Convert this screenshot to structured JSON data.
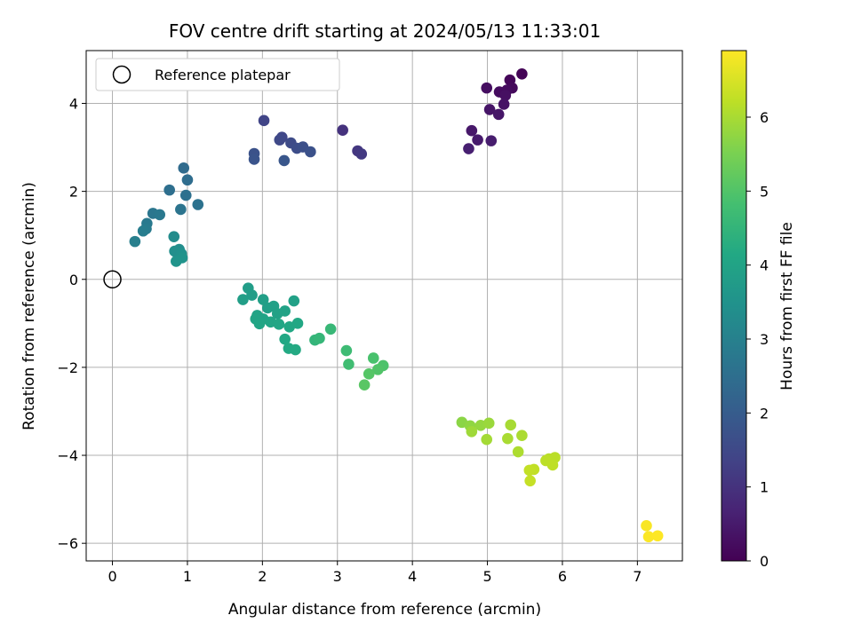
{
  "chart_data": {
    "type": "scatter",
    "title": "FOV centre drift starting at 2024/05/13 11:33:01",
    "xlabel": "Angular distance from reference (arcmin)",
    "ylabel": "Rotation from reference (arcmin)",
    "xlim": [
      -0.35,
      7.6
    ],
    "ylim": [
      -6.4,
      5.2
    ],
    "xticks": [
      0,
      1,
      2,
      3,
      4,
      5,
      6,
      7
    ],
    "yticks": [
      -6,
      -4,
      -2,
      0,
      2,
      4
    ],
    "grid": true,
    "legend": {
      "placement": "top-left",
      "entries": [
        "Reference platepar"
      ]
    },
    "reference_point": {
      "x": 0,
      "y": 0,
      "label": "Reference platepar",
      "marker": "open-circle"
    },
    "colorbar": {
      "label": "Hours from first FF file",
      "colormap": "viridis",
      "range": [
        0,
        6.9
      ],
      "ticks": [
        0,
        1,
        2,
        3,
        4,
        5,
        6
      ]
    },
    "points": [
      {
        "x": 5.46,
        "y": 4.67,
        "h": 0.05
      },
      {
        "x": 5.3,
        "y": 4.53,
        "h": 0.1
      },
      {
        "x": 5.33,
        "y": 4.35,
        "h": 0.15
      },
      {
        "x": 5.26,
        "y": 4.3,
        "h": 0.2
      },
      {
        "x": 5.16,
        "y": 4.26,
        "h": 0.22
      },
      {
        "x": 4.99,
        "y": 4.35,
        "h": 0.25
      },
      {
        "x": 5.24,
        "y": 4.18,
        "h": 0.3
      },
      {
        "x": 5.22,
        "y": 3.98,
        "h": 0.35
      },
      {
        "x": 5.03,
        "y": 3.86,
        "h": 0.4
      },
      {
        "x": 5.15,
        "y": 3.75,
        "h": 0.42
      },
      {
        "x": 4.79,
        "y": 3.38,
        "h": 0.45
      },
      {
        "x": 4.87,
        "y": 3.17,
        "h": 0.5
      },
      {
        "x": 5.05,
        "y": 3.15,
        "h": 0.55
      },
      {
        "x": 4.75,
        "y": 2.97,
        "h": 0.6
      },
      {
        "x": 3.07,
        "y": 3.39,
        "h": 1.0
      },
      {
        "x": 3.27,
        "y": 2.92,
        "h": 1.1
      },
      {
        "x": 3.32,
        "y": 2.85,
        "h": 1.15
      },
      {
        "x": 2.02,
        "y": 3.61,
        "h": 1.4
      },
      {
        "x": 2.26,
        "y": 3.23,
        "h": 1.45
      },
      {
        "x": 2.23,
        "y": 3.17,
        "h": 1.5
      },
      {
        "x": 2.38,
        "y": 3.1,
        "h": 1.55
      },
      {
        "x": 2.46,
        "y": 2.98,
        "h": 1.6
      },
      {
        "x": 2.54,
        "y": 3.01,
        "h": 1.65
      },
      {
        "x": 2.64,
        "y": 2.9,
        "h": 1.7
      },
      {
        "x": 1.89,
        "y": 2.86,
        "h": 1.75
      },
      {
        "x": 1.89,
        "y": 2.73,
        "h": 1.8
      },
      {
        "x": 2.29,
        "y": 2.7,
        "h": 1.85
      },
      {
        "x": 0.95,
        "y": 2.53,
        "h": 2.4
      },
      {
        "x": 1.0,
        "y": 2.26,
        "h": 2.45
      },
      {
        "x": 0.76,
        "y": 2.03,
        "h": 2.5
      },
      {
        "x": 0.98,
        "y": 1.91,
        "h": 2.55
      },
      {
        "x": 1.14,
        "y": 1.7,
        "h": 2.6
      },
      {
        "x": 0.91,
        "y": 1.59,
        "h": 2.65
      },
      {
        "x": 0.54,
        "y": 1.5,
        "h": 2.7
      },
      {
        "x": 0.63,
        "y": 1.47,
        "h": 2.75
      },
      {
        "x": 0.46,
        "y": 1.27,
        "h": 2.8
      },
      {
        "x": 0.45,
        "y": 1.15,
        "h": 2.85
      },
      {
        "x": 0.41,
        "y": 1.1,
        "h": 2.9
      },
      {
        "x": 0.3,
        "y": 0.86,
        "h": 2.95
      },
      {
        "x": 0.82,
        "y": 0.97,
        "h": 3.3
      },
      {
        "x": 0.89,
        "y": 0.68,
        "h": 3.35
      },
      {
        "x": 0.83,
        "y": 0.64,
        "h": 3.4
      },
      {
        "x": 0.92,
        "y": 0.58,
        "h": 3.45
      },
      {
        "x": 0.93,
        "y": 0.49,
        "h": 3.5
      },
      {
        "x": 0.85,
        "y": 0.41,
        "h": 3.55
      },
      {
        "x": 1.81,
        "y": -0.2,
        "h": 3.8
      },
      {
        "x": 1.86,
        "y": -0.36,
        "h": 3.82
      },
      {
        "x": 1.74,
        "y": -0.46,
        "h": 3.84
      },
      {
        "x": 2.01,
        "y": -0.46,
        "h": 3.86
      },
      {
        "x": 2.07,
        "y": -0.65,
        "h": 3.88
      },
      {
        "x": 2.15,
        "y": -0.61,
        "h": 3.9
      },
      {
        "x": 2.42,
        "y": -0.49,
        "h": 3.92
      },
      {
        "x": 2.2,
        "y": -0.78,
        "h": 3.94
      },
      {
        "x": 2.3,
        "y": -0.72,
        "h": 3.96
      },
      {
        "x": 1.93,
        "y": -0.82,
        "h": 3.98
      },
      {
        "x": 2.01,
        "y": -0.9,
        "h": 4.0
      },
      {
        "x": 1.91,
        "y": -0.9,
        "h": 4.02
      },
      {
        "x": 1.96,
        "y": -1.01,
        "h": 4.04
      },
      {
        "x": 2.11,
        "y": -0.97,
        "h": 4.06
      },
      {
        "x": 2.22,
        "y": -1.02,
        "h": 4.08
      },
      {
        "x": 2.36,
        "y": -1.08,
        "h": 4.1
      },
      {
        "x": 2.47,
        "y": -1.0,
        "h": 4.12
      },
      {
        "x": 2.3,
        "y": -1.36,
        "h": 4.14
      },
      {
        "x": 2.35,
        "y": -1.57,
        "h": 4.16
      },
      {
        "x": 2.44,
        "y": -1.6,
        "h": 4.18
      },
      {
        "x": 2.7,
        "y": -1.38,
        "h": 4.5
      },
      {
        "x": 2.76,
        "y": -1.34,
        "h": 4.55
      },
      {
        "x": 2.91,
        "y": -1.13,
        "h": 4.6
      },
      {
        "x": 3.12,
        "y": -1.62,
        "h": 4.7
      },
      {
        "x": 3.15,
        "y": -1.93,
        "h": 4.75
      },
      {
        "x": 3.48,
        "y": -1.79,
        "h": 4.9
      },
      {
        "x": 3.61,
        "y": -1.96,
        "h": 4.95
      },
      {
        "x": 3.54,
        "y": -2.05,
        "h": 5.0
      },
      {
        "x": 3.42,
        "y": -2.15,
        "h": 5.05
      },
      {
        "x": 3.36,
        "y": -2.4,
        "h": 5.1
      },
      {
        "x": 4.66,
        "y": -3.25,
        "h": 5.7
      },
      {
        "x": 4.77,
        "y": -3.33,
        "h": 5.75
      },
      {
        "x": 4.91,
        "y": -3.32,
        "h": 5.8
      },
      {
        "x": 5.02,
        "y": -3.27,
        "h": 5.85
      },
      {
        "x": 4.79,
        "y": -3.46,
        "h": 5.9
      },
      {
        "x": 4.99,
        "y": -3.64,
        "h": 5.95
      },
      {
        "x": 5.31,
        "y": -3.31,
        "h": 5.98
      },
      {
        "x": 5.27,
        "y": -3.62,
        "h": 6.0
      },
      {
        "x": 5.46,
        "y": -3.55,
        "h": 6.02
      },
      {
        "x": 5.41,
        "y": -3.92,
        "h": 6.05
      },
      {
        "x": 5.82,
        "y": -4.08,
        "h": 6.15
      },
      {
        "x": 5.9,
        "y": -4.05,
        "h": 6.18
      },
      {
        "x": 5.78,
        "y": -4.12,
        "h": 6.2
      },
      {
        "x": 5.87,
        "y": -4.22,
        "h": 6.22
      },
      {
        "x": 5.62,
        "y": -4.32,
        "h": 6.25
      },
      {
        "x": 5.56,
        "y": -4.34,
        "h": 6.28
      },
      {
        "x": 5.57,
        "y": -4.58,
        "h": 6.3
      },
      {
        "x": 7.12,
        "y": -5.6,
        "h": 6.85
      },
      {
        "x": 7.15,
        "y": -5.85,
        "h": 6.88
      },
      {
        "x": 7.27,
        "y": -5.83,
        "h": 6.9
      }
    ]
  }
}
